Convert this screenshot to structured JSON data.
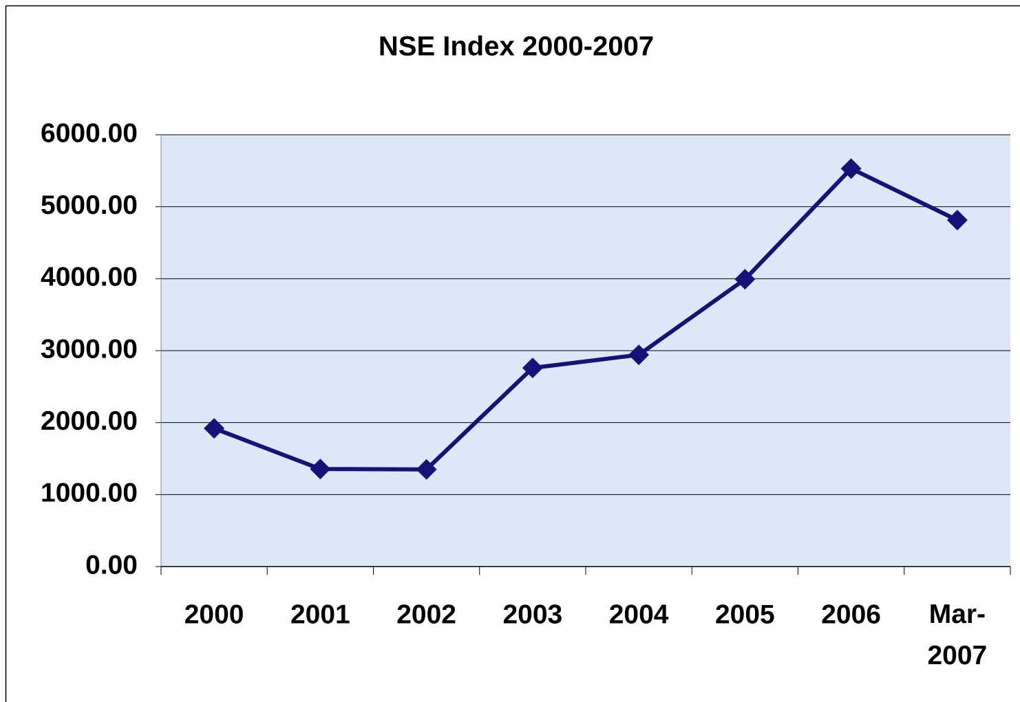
{
  "chart_data": {
    "type": "line",
    "title": "NSE Index 2000-2007",
    "categories": [
      "2000",
      "2001",
      "2002",
      "2003",
      "2004",
      "2005",
      "2006",
      "Mar-2007"
    ],
    "series": [
      {
        "name": "NSE Index",
        "color": "#141478",
        "values": [
          1920,
          1356,
          1350,
          2760,
          2942,
          3992,
          5530,
          4814
        ]
      }
    ],
    "ylim": [
      0,
      6000
    ],
    "yticks": [
      {
        "value": 0,
        "label": "0.00"
      },
      {
        "value": 1000,
        "label": "1000.00"
      },
      {
        "value": 2000,
        "label": "2000.00"
      },
      {
        "value": 3000,
        "label": "3000.00"
      },
      {
        "value": 4000,
        "label": "4000.00"
      },
      {
        "value": 5000,
        "label": "5000.00"
      },
      {
        "value": 6000,
        "label": "6000.00"
      }
    ],
    "grid": true
  }
}
